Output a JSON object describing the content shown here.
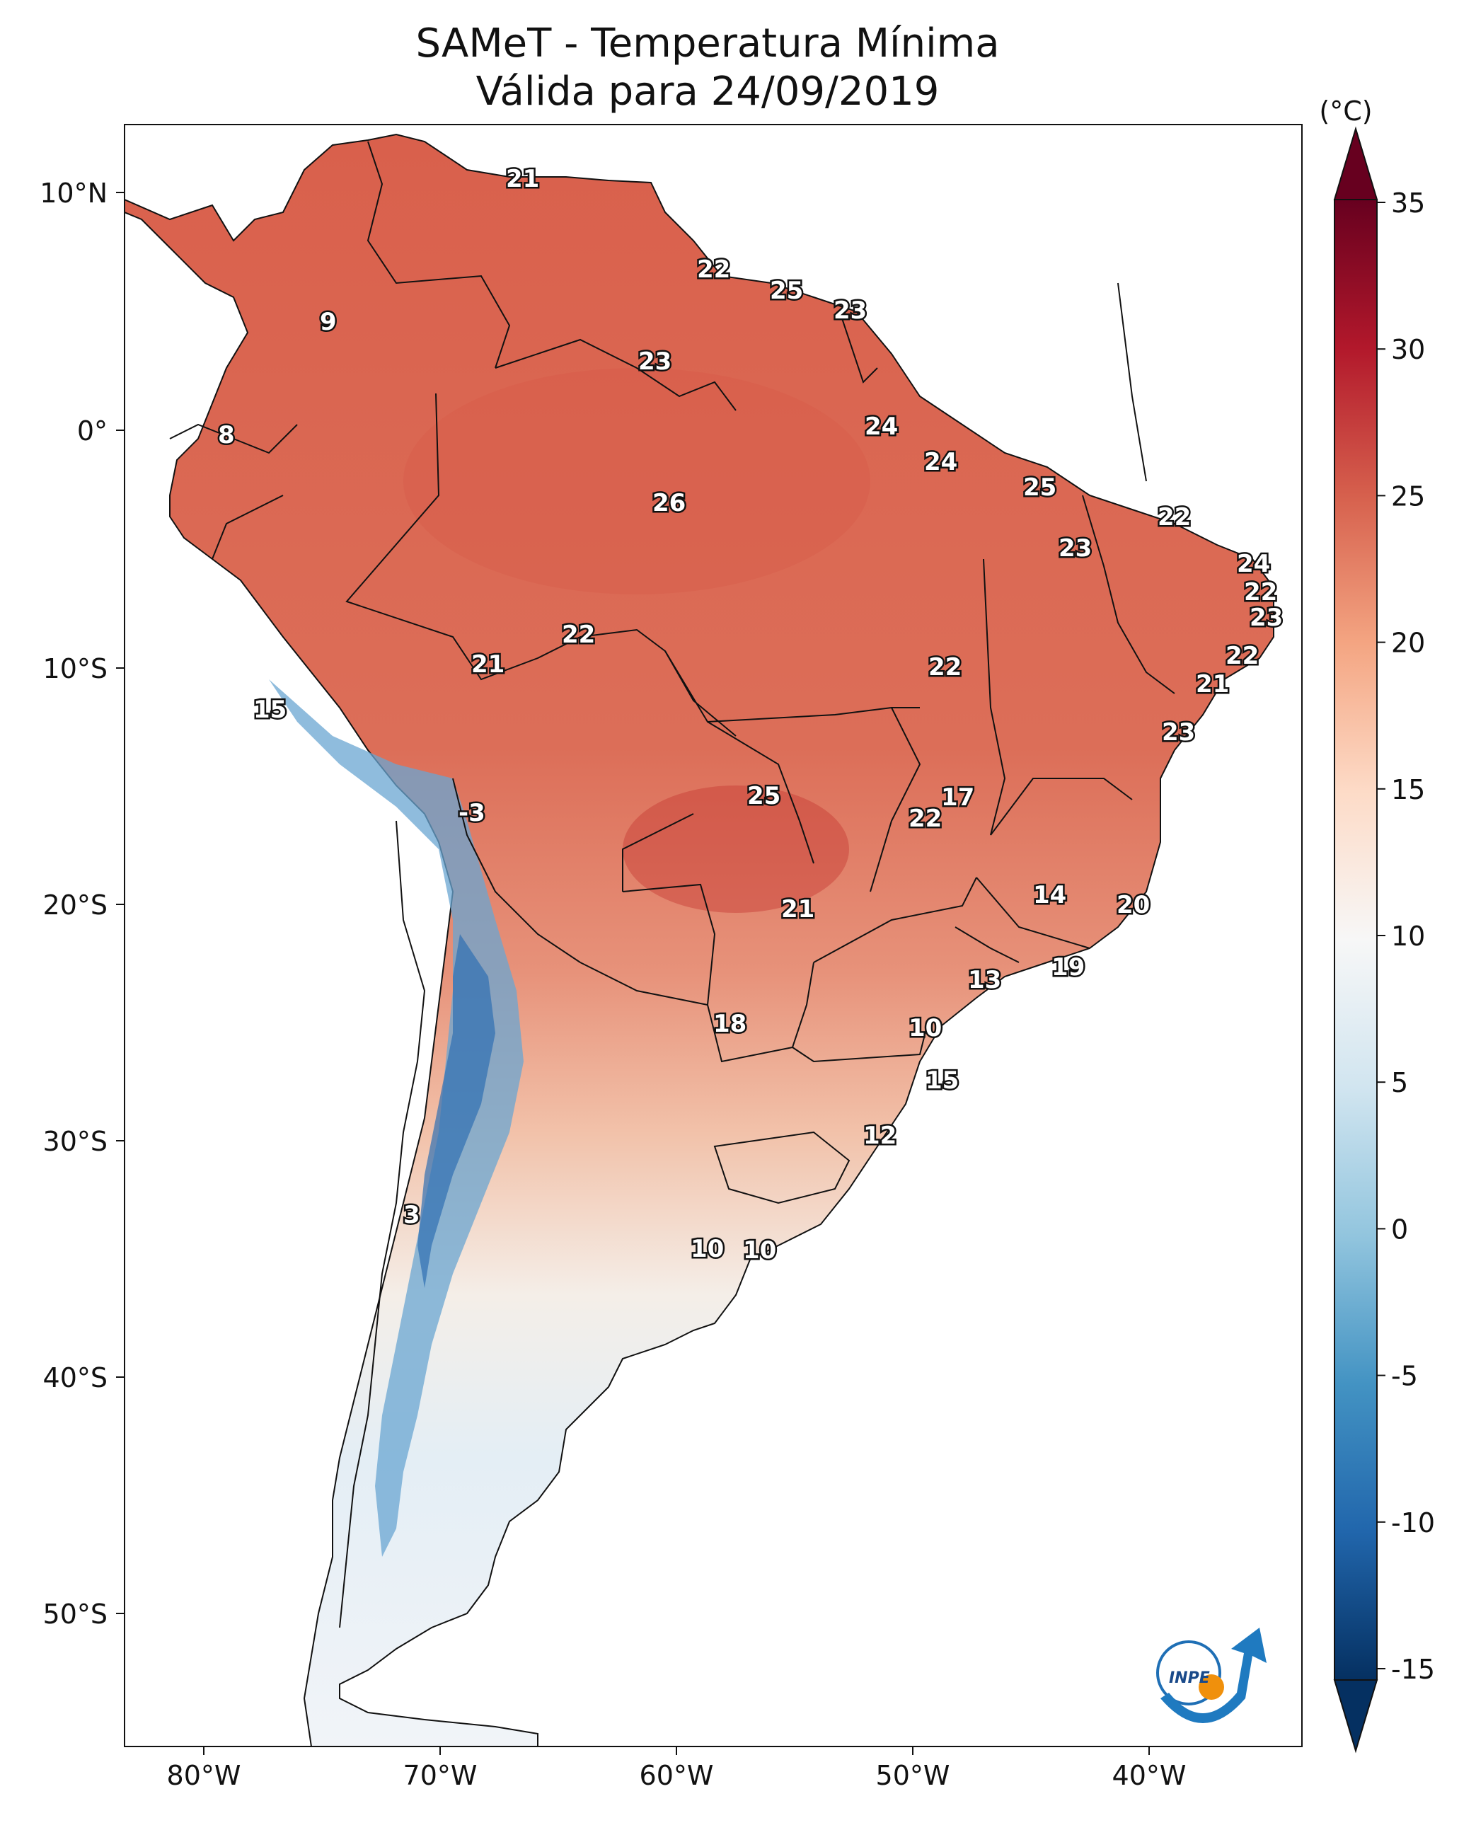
{
  "title_line1": "SAMeT - Temperatura Mínima",
  "title_line2": "Válida para 24/09/2019",
  "colorbar": {
    "unit": "(°C)",
    "ticks": [
      "35",
      "30",
      "25",
      "20",
      "15",
      "10",
      "5",
      "0",
      "-5",
      "-10",
      "-15"
    ],
    "min": -15,
    "max": 35,
    "colors": [
      "#053061",
      "#2166ac",
      "#4393c3",
      "#92c5de",
      "#d1e5f0",
      "#f7f7f7",
      "#fddbc7",
      "#f4a582",
      "#d6604d",
      "#b2182b",
      "#67001f"
    ]
  },
  "axes": {
    "lon_labels": [
      "80°W",
      "70°W",
      "60°W",
      "50°W",
      "40°W"
    ],
    "lat_labels": [
      "10°N",
      "0°",
      "10°S",
      "20°S",
      "30°S",
      "40°S",
      "50°S"
    ]
  },
  "contour_labels": [
    "21",
    "22",
    "25",
    "23",
    "9",
    "23",
    "24",
    "8",
    "24",
    "25",
    "26",
    "22",
    "23",
    "24",
    "22",
    "23",
    "22",
    "21",
    "22",
    "22",
    "21",
    "15",
    "23",
    "25",
    "17",
    "22",
    "-3",
    "14",
    "20",
    "21",
    "19",
    "13",
    "18",
    "10",
    "15",
    "12",
    "3",
    "10",
    "10"
  ],
  "logo": {
    "text": "INPE"
  }
}
